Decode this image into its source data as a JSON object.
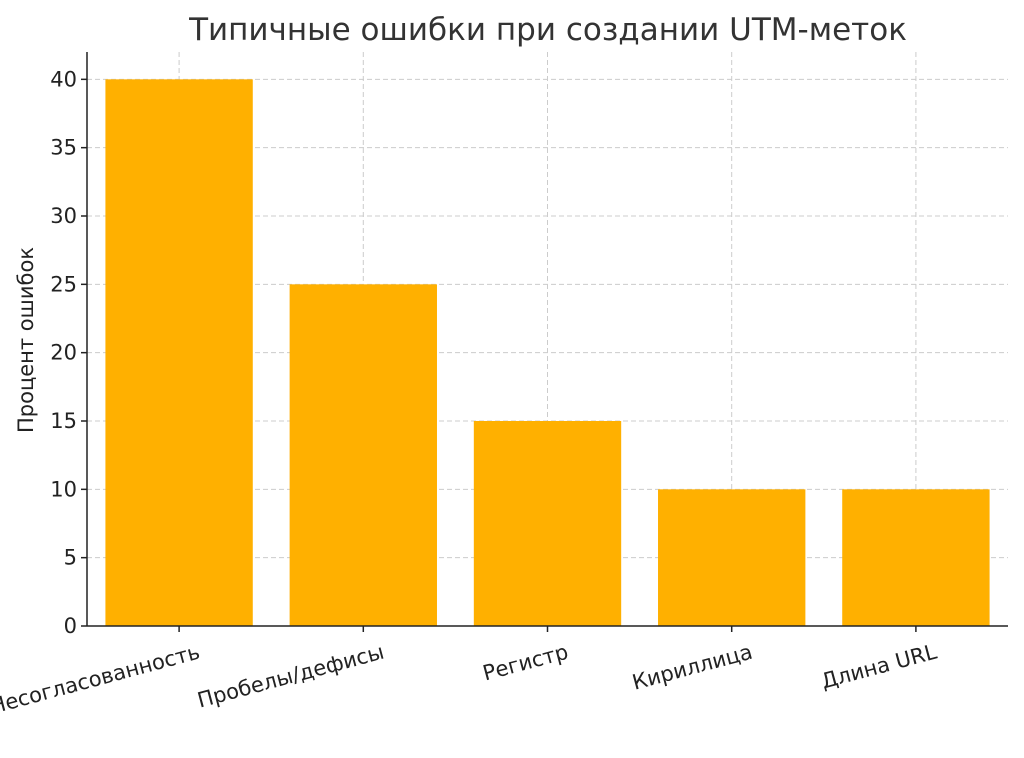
{
  "chart_data": {
    "type": "bar",
    "title": "Типичные ошибки при создании UTM-меток",
    "xlabel": "",
    "ylabel": "Процент ошибок",
    "categories": [
      "Несогласованность",
      "Пробелы/дефисы",
      "Регистр",
      "Кириллица",
      "Длина URL"
    ],
    "values": [
      40,
      25,
      15,
      10,
      10
    ],
    "ylim": [
      0,
      42
    ],
    "yticks": [
      0,
      5,
      10,
      15,
      20,
      25,
      30,
      35,
      40
    ],
    "bar_color": "#FFB000",
    "grid": true
  }
}
